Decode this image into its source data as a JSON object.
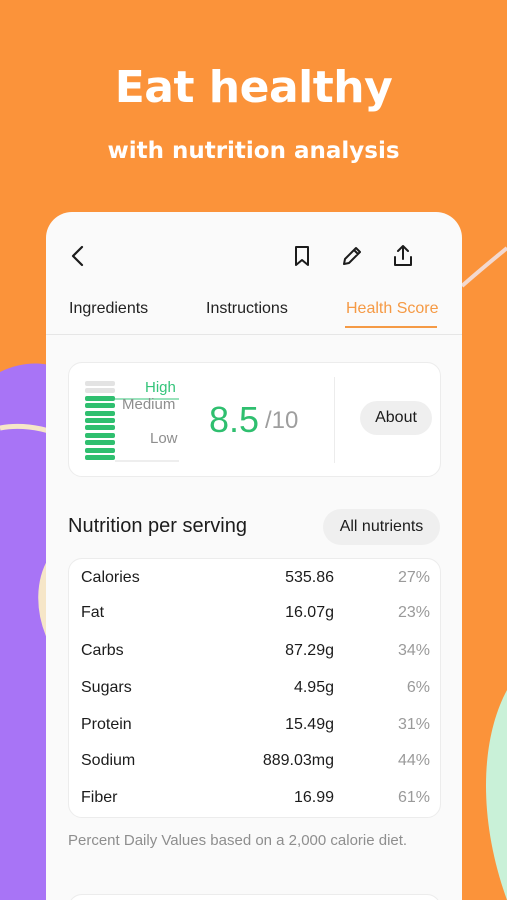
{
  "hero": {
    "title": "Eat healthy",
    "subtitle": "with nutrition analysis"
  },
  "colors": {
    "background": "#fb933a",
    "accent_orange": "#f59a45",
    "score_green": "#2fbf6f",
    "purple_shape": "#a874f6"
  },
  "toolbar": {
    "back_icon": "chevron-left-icon",
    "bookmark_icon": "bookmark-icon",
    "edit_icon": "pencil-icon",
    "share_icon": "share-icon"
  },
  "tabs": [
    {
      "label": "Ingredients"
    },
    {
      "label": "Instructions"
    },
    {
      "label": "Health Score",
      "active": true
    }
  ],
  "health_score": {
    "levels": {
      "high": "High",
      "medium": "Medium",
      "low": "Low"
    },
    "score": "8.5",
    "max": "/10",
    "filled_bars": 9,
    "total_bars": 11,
    "about_label": "About"
  },
  "nutrition": {
    "title": "Nutrition per serving",
    "all_nutrients_label": "All nutrients",
    "rows": [
      {
        "name": "Calories",
        "amount": "535.86",
        "percent": "27%"
      },
      {
        "name": "Fat",
        "amount": "16.07g",
        "percent": "23%"
      },
      {
        "name": "Carbs",
        "amount": "87.29g",
        "percent": "34%"
      },
      {
        "name": "Sugars",
        "amount": "4.95g",
        "percent": "6%"
      },
      {
        "name": "Protein",
        "amount": "15.49g",
        "percent": "31%"
      },
      {
        "name": "Sodium",
        "amount": "889.03mg",
        "percent": "44%"
      },
      {
        "name": "Fiber",
        "amount": "16.99",
        "percent": "61%"
      }
    ],
    "footnote": "Percent Daily Values based on a 2,000 calorie diet."
  }
}
